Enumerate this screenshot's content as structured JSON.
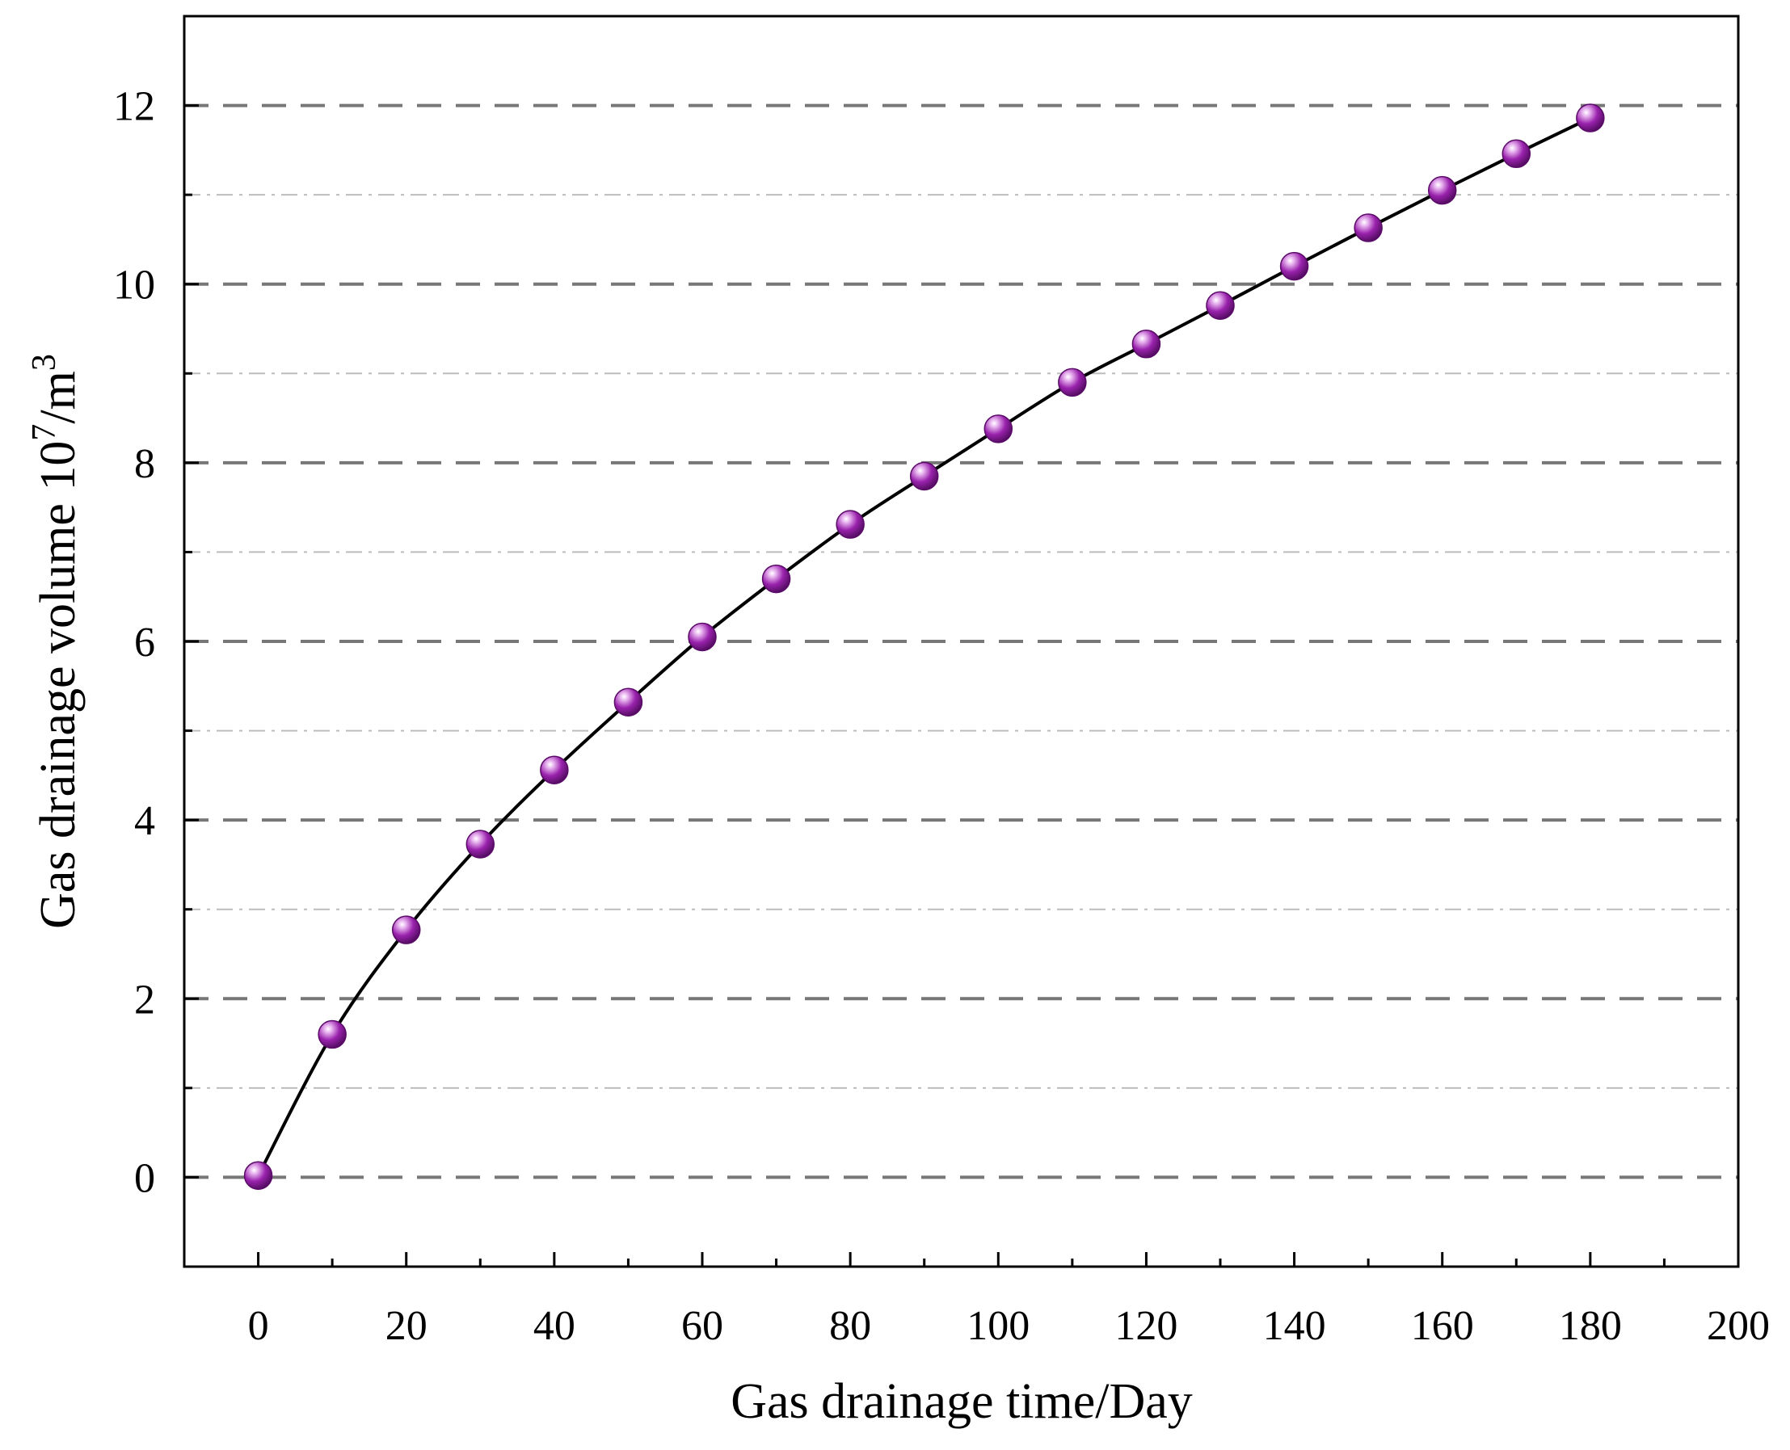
{
  "chart_data": {
    "type": "line",
    "title": "",
    "xlabel": "Gas drainage time/Day",
    "ylabel": "Gas drainage volume 10⁷/m³",
    "ylabel_parts": {
      "base": "Gas drainage volume 10",
      "sup1": "7",
      "mid": "/m",
      "sup2": "3"
    },
    "xlim": [
      -10,
      200
    ],
    "ylim": [
      -1,
      13
    ],
    "xticks": [
      0,
      20,
      40,
      60,
      80,
      100,
      120,
      140,
      160,
      180,
      200
    ],
    "yticks": [
      0,
      2,
      4,
      6,
      8,
      10,
      12
    ],
    "grid": "major dashed, minor dash-dot horizontal",
    "legend": "none",
    "series": [
      {
        "x": [
          0,
          10,
          20,
          30,
          40,
          50,
          60,
          70,
          80,
          90,
          100,
          110,
          120,
          130,
          140,
          150,
          160,
          170,
          180
        ],
        "values": [
          0.02,
          1.6,
          2.77,
          3.73,
          4.56,
          5.32,
          6.05,
          6.7,
          7.31,
          7.85,
          8.38,
          8.9,
          9.33,
          9.76,
          10.2,
          10.63,
          11.05,
          11.46,
          11.86
        ],
        "marker": "sphere",
        "marker_color": "#8b1a9e",
        "line_color": "#000000"
      }
    ]
  }
}
